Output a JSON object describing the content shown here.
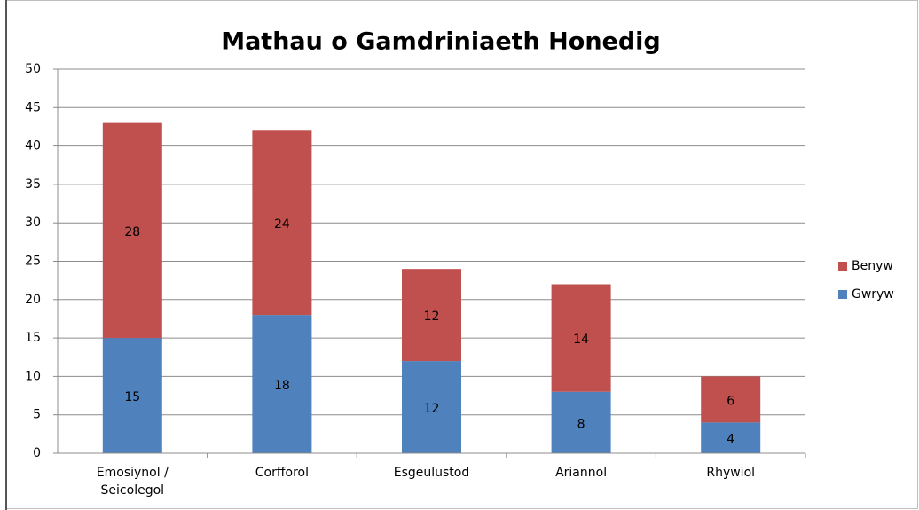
{
  "chart_data": {
    "type": "stacked_bar",
    "title": "Mathau o Gamdriniaeth Honedig",
    "categories": [
      "Emosiynol / Seicolegol",
      "Corfforol",
      "Esgeulustod",
      "Ariannol",
      "Rhywiol"
    ],
    "series": [
      {
        "name": "Gwryw",
        "color": "#4f81bd",
        "values": [
          15,
          18,
          12,
          8,
          4
        ]
      },
      {
        "name": "Benyw",
        "color": "#c0504d",
        "values": [
          28,
          24,
          12,
          14,
          6
        ]
      }
    ],
    "ylim": [
      0,
      50
    ],
    "yticks": [
      0,
      5,
      10,
      15,
      20,
      25,
      30,
      35,
      40,
      45,
      50
    ],
    "grid": true,
    "legend": "right"
  }
}
